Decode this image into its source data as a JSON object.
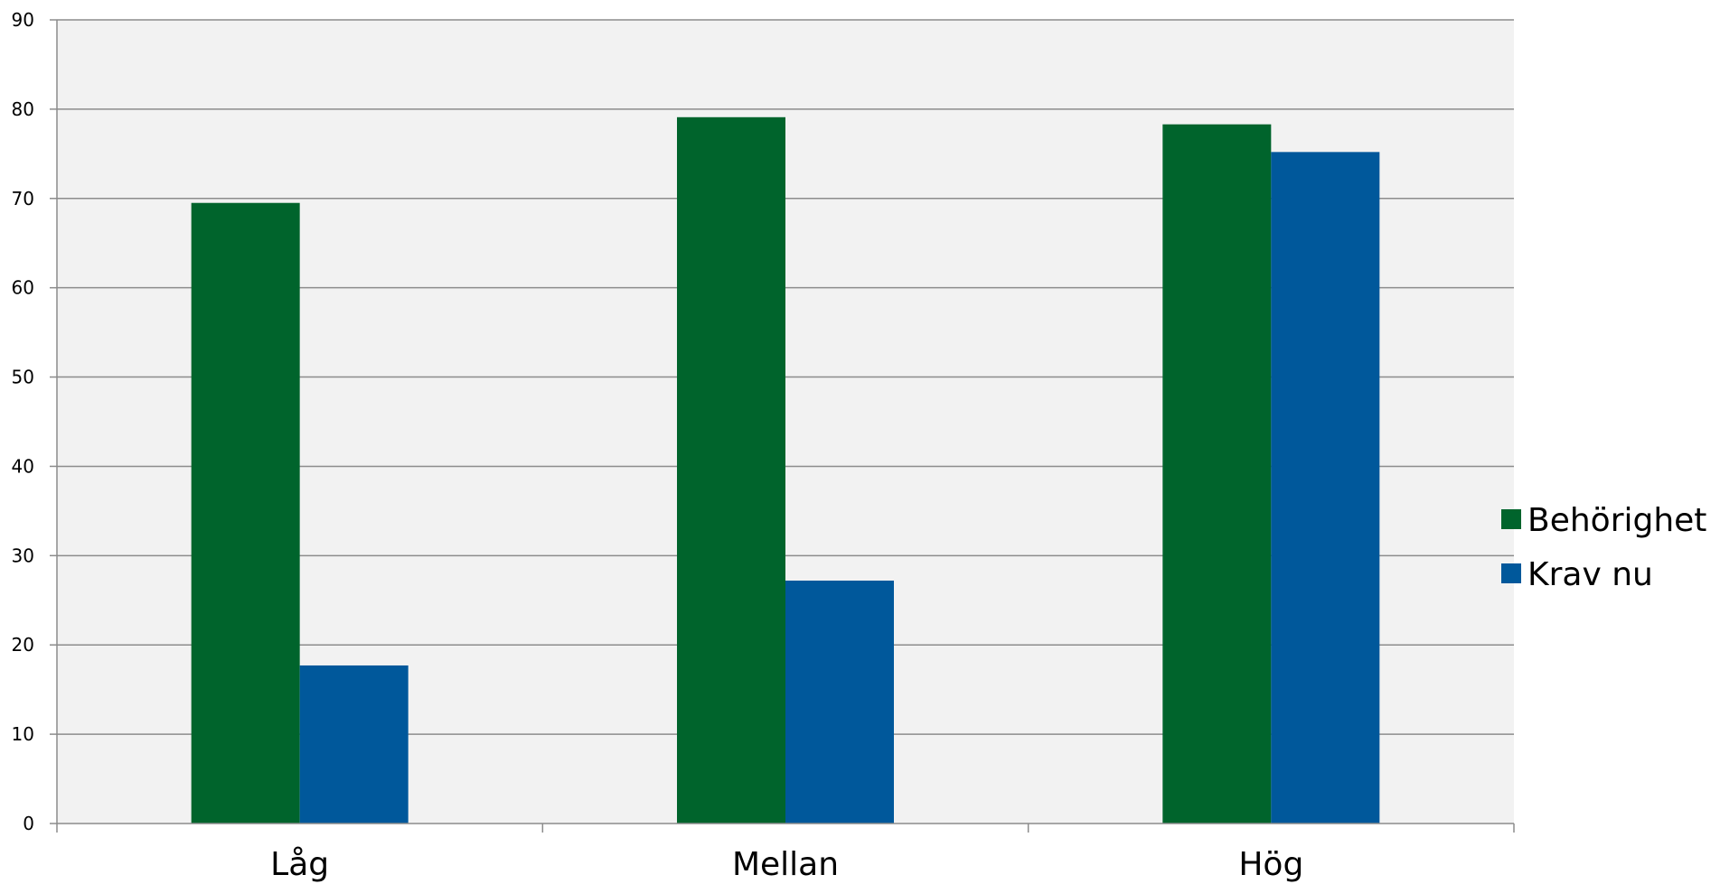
{
  "chart_data": {
    "type": "bar",
    "categories": [
      "Låg",
      "Mellan",
      "Hög"
    ],
    "series": [
      {
        "name": "Behörighet",
        "color": "#00642C",
        "values": [
          69.5,
          79.1,
          78.3
        ]
      },
      {
        "name": "Krav nu",
        "color": "#00589B",
        "values": [
          17.7,
          27.2,
          75.2
        ]
      }
    ],
    "yticks": [
      "0",
      "10",
      "20",
      "30",
      "40",
      "50",
      "60",
      "70",
      "80",
      "90"
    ],
    "ylim": [
      0,
      90
    ],
    "grid": true,
    "legend": "right",
    "plot_background": "#F2F2F2",
    "gridline_color": "#8C8C8C"
  }
}
